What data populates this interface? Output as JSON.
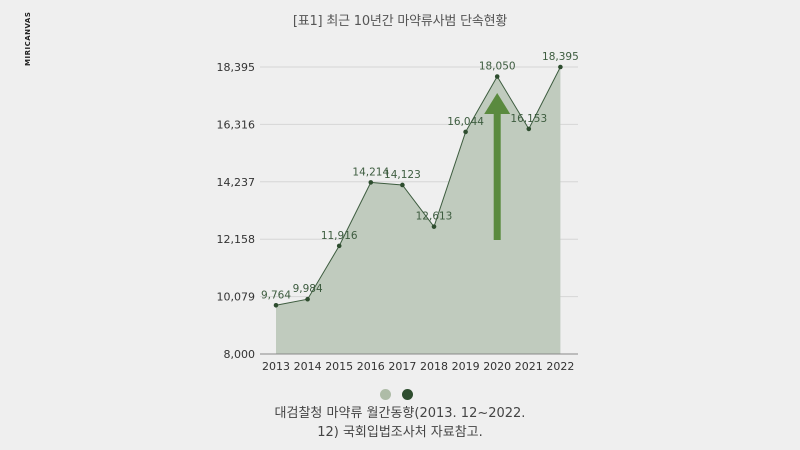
{
  "title": "[표1] 최근 10년간 마약류사범 단속현황",
  "brand": "MIRICANVAS",
  "legend": {
    "colors": [
      "#aebca7",
      "#2e4d2f"
    ]
  },
  "note": [
    "대검찰청 마약류 월간동향(2013. 12~2022.",
    "12) 국회입법조사처 자료참고."
  ],
  "colors": {
    "area": "#c0cbbe",
    "line": "#3d5c3f",
    "point": "#2e4d2f",
    "arrow": "#5a8a3e",
    "grid": "#d6d6d6",
    "axis": "#888888"
  },
  "chart_data": {
    "type": "area",
    "title": "[표1] 최근 10년간 마약류사범 단속현황",
    "x": [
      "2013",
      "2014",
      "2015",
      "2016",
      "2017",
      "2018",
      "2019",
      "2020",
      "2021",
      "2022"
    ],
    "values": [
      9764,
      9984,
      11916,
      14214,
      14123,
      12613,
      16044,
      18050,
      16153,
      18395
    ],
    "data_labels": [
      "9,764",
      "9,984",
      "11,916",
      "14,214",
      "14,123",
      "12,613",
      "16,044",
      "18,050",
      "16,153",
      "18,395"
    ],
    "yticks": [
      8000,
      10079,
      12158,
      14237,
      16316,
      18395
    ],
    "ytick_labels": [
      "8,000",
      "10,079",
      "12,158",
      "14,237",
      "16,316",
      "18,395"
    ],
    "ylim": [
      8000,
      18395
    ],
    "grid": true,
    "annotation": "up-arrow",
    "xlabel": "",
    "ylabel": ""
  }
}
